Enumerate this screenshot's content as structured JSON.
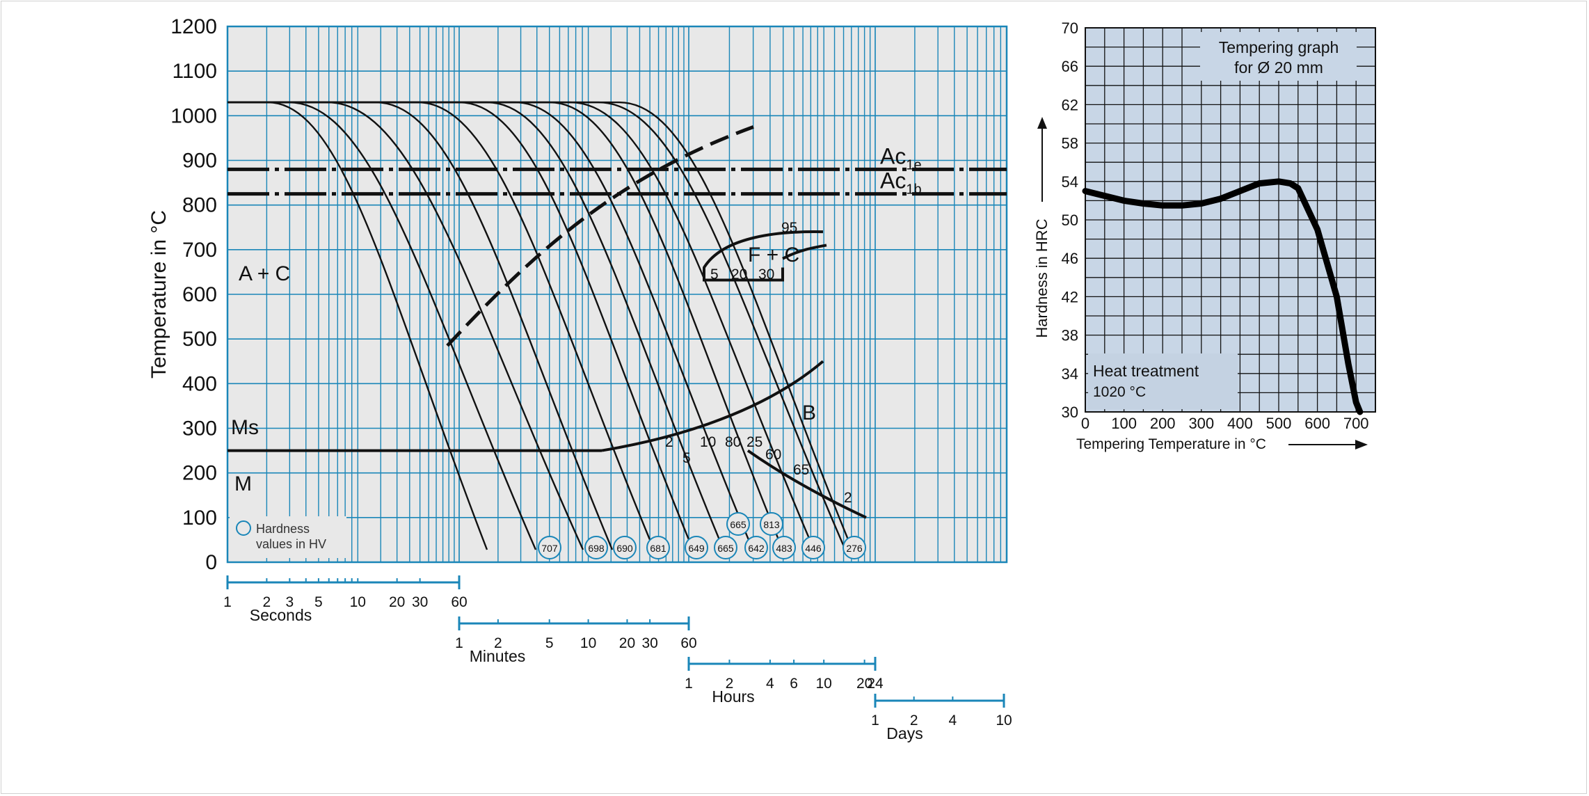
{
  "chart_data": [
    {
      "type": "line",
      "ylabel": "Temperature in °C",
      "y_ticks": [
        "0",
        "100",
        "200",
        "300",
        "400",
        "500",
        "600",
        "700",
        "800",
        "900",
        "1000",
        "1100",
        "1200"
      ],
      "ylim": [
        0,
        1200
      ],
      "x_scale": "log time",
      "phase_labels": [
        "A + C",
        "Ms",
        "M",
        "B",
        "F + C"
      ],
      "lines": [
        {
          "label": "Ac1e",
          "label_main": "Ac",
          "label_sub": "1e",
          "y": 880
        },
        {
          "label": "Ac1b",
          "label_main": "Ac",
          "label_sub": "1b",
          "y": 825
        }
      ],
      "ms_temperature": 250,
      "austenitizing_temperature": 1030,
      "legend_text": [
        "Hardness",
        "values in HV"
      ],
      "hardness_values": [
        "707",
        "698",
        "690",
        "681",
        "649",
        "665",
        "642",
        "483",
        "446",
        "276",
        "665",
        "813"
      ],
      "transformation_percent_labels": [
        "95",
        "5",
        "20",
        "30",
        "2",
        "5",
        "10",
        "80",
        "25",
        "60",
        "65",
        "2"
      ],
      "time_axes": [
        {
          "name": "Seconds",
          "ticks": [
            "1",
            "2",
            "3",
            "5",
            "10",
            "20",
            "30",
            "60"
          ]
        },
        {
          "name": "Minutes",
          "ticks": [
            "1",
            "2",
            "5",
            "10",
            "20",
            "30",
            "60"
          ]
        },
        {
          "name": "Hours",
          "ticks": [
            "1",
            "2",
            "4",
            "6",
            "10",
            "20",
            "24"
          ]
        },
        {
          "name": "Days",
          "ticks": [
            "1",
            "2",
            "4",
            "10"
          ]
        }
      ],
      "colors": {
        "grid": "#1a86b8",
        "background": "#e8e8e8",
        "lines": "#111111"
      }
    },
    {
      "type": "line",
      "title": "Tempering graph",
      "subtitle": "for Ø 20 mm",
      "xlabel": "Tempering Temperature in °C",
      "ylabel": "Hardness in HRC",
      "x": [
        0,
        50,
        100,
        150,
        200,
        250,
        300,
        350,
        400,
        450,
        500,
        530,
        550,
        600,
        650,
        680,
        700,
        710
      ],
      "y": [
        53,
        52.5,
        52,
        51.7,
        51.5,
        51.5,
        51.7,
        52.2,
        53,
        53.8,
        54,
        53.8,
        53.3,
        49,
        42,
        35,
        31,
        30
      ],
      "xlim": [
        0,
        750
      ],
      "ylim": [
        30,
        70
      ],
      "x_ticks": [
        "0",
        "100",
        "200",
        "300",
        "400",
        "500",
        "600",
        "700"
      ],
      "y_ticks": [
        "30",
        "34",
        "38",
        "42",
        "46",
        "50",
        "54",
        "58",
        "62",
        "66",
        "70"
      ],
      "annotation": {
        "title": "Heat treatment",
        "value": "1020 °C"
      },
      "colors": {
        "background": "#c8d6e6",
        "grid": "#111111",
        "curve": "#000000"
      }
    }
  ]
}
